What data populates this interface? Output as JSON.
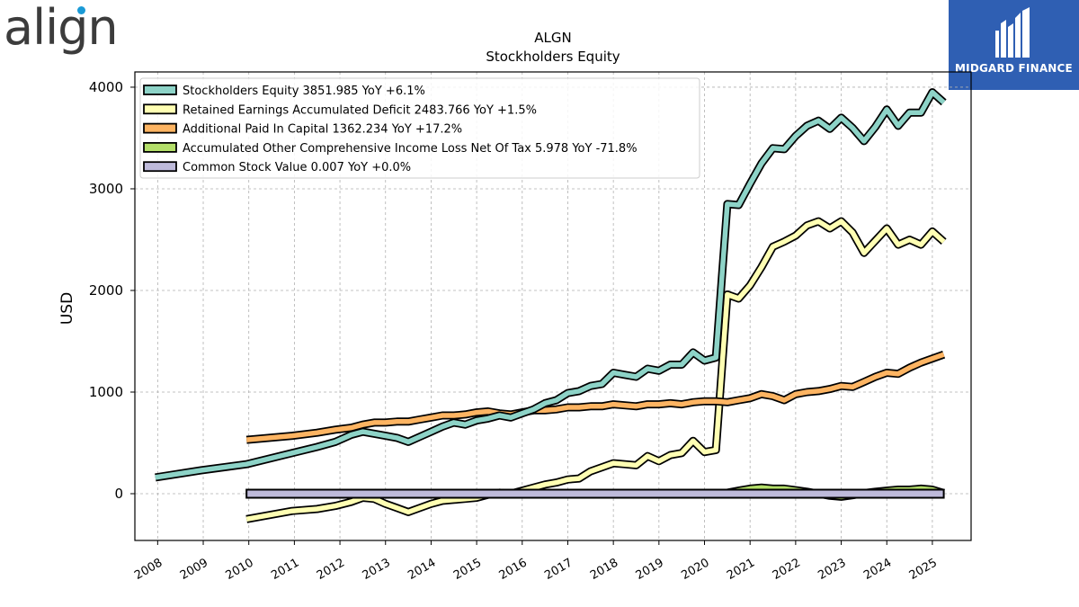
{
  "logo": {
    "text": "align",
    "accent_color": "#1a9ad6"
  },
  "brand": {
    "name": "MIDGARD FINANCE",
    "bg_color": "#2f5fb3",
    "icon": "midgard-m-icon"
  },
  "chart_data": {
    "type": "line",
    "title": "ALGN",
    "subtitle": "Stockholders  Equity",
    "ylabel": "USD",
    "xlabel": "",
    "xlim": [
      2007.5,
      2025.85
    ],
    "ylim": [
      -460,
      4150
    ],
    "x_ticks": [
      "2008",
      "2009",
      "2010",
      "2011",
      "2012",
      "2013",
      "2014",
      "2015",
      "2016",
      "2017",
      "2018",
      "2019",
      "2020",
      "2021",
      "2022",
      "2023",
      "2024",
      "2025"
    ],
    "y_ticks": [
      "0",
      "1000",
      "2000",
      "3000",
      "4000"
    ],
    "y_tick_values": [
      0,
      1000,
      2000,
      3000,
      4000
    ],
    "grid": true,
    "legend_position": "top-left",
    "series": [
      {
        "name": "Stockholders Equity",
        "legend": "Stockholders Equity  3851.985 YoY +6.1%",
        "color": "#8dd3c7",
        "points": [
          [
            2007.95,
            160
          ],
          [
            2008.95,
            230
          ],
          [
            2009.95,
            290
          ],
          [
            2010.95,
            400
          ],
          [
            2011.5,
            460
          ],
          [
            2011.9,
            510
          ],
          [
            2012.25,
            580
          ],
          [
            2012.5,
            610
          ],
          [
            2012.75,
            590
          ],
          [
            2013.0,
            570
          ],
          [
            2013.25,
            550
          ],
          [
            2013.5,
            510
          ],
          [
            2013.75,
            560
          ],
          [
            2014.0,
            610
          ],
          [
            2014.25,
            660
          ],
          [
            2014.5,
            700
          ],
          [
            2014.75,
            680
          ],
          [
            2015.0,
            720
          ],
          [
            2015.25,
            740
          ],
          [
            2015.5,
            770
          ],
          [
            2015.75,
            750
          ],
          [
            2016.0,
            790
          ],
          [
            2016.25,
            830
          ],
          [
            2016.5,
            890
          ],
          [
            2016.75,
            920
          ],
          [
            2017.0,
            990
          ],
          [
            2017.25,
            1010
          ],
          [
            2017.5,
            1060
          ],
          [
            2017.75,
            1080
          ],
          [
            2018.0,
            1190
          ],
          [
            2018.25,
            1170
          ],
          [
            2018.5,
            1150
          ],
          [
            2018.75,
            1230
          ],
          [
            2019.0,
            1210
          ],
          [
            2019.25,
            1270
          ],
          [
            2019.5,
            1270
          ],
          [
            2019.75,
            1390
          ],
          [
            2020.0,
            1310
          ],
          [
            2020.25,
            1340
          ],
          [
            2020.5,
            2850
          ],
          [
            2020.75,
            2840
          ],
          [
            2021.0,
            3050
          ],
          [
            2021.25,
            3250
          ],
          [
            2021.5,
            3400
          ],
          [
            2021.75,
            3390
          ],
          [
            2022.0,
            3520
          ],
          [
            2022.25,
            3620
          ],
          [
            2022.5,
            3670
          ],
          [
            2022.75,
            3590
          ],
          [
            2023.0,
            3700
          ],
          [
            2023.25,
            3600
          ],
          [
            2023.5,
            3470
          ],
          [
            2023.75,
            3610
          ],
          [
            2024.0,
            3780
          ],
          [
            2024.25,
            3620
          ],
          [
            2024.5,
            3750
          ],
          [
            2024.75,
            3750
          ],
          [
            2025.0,
            3950
          ],
          [
            2025.25,
            3850
          ]
        ]
      },
      {
        "name": "Retained Earnings Accumulated Deficit",
        "legend": "Retained Earnings Accumulated Deficit  2483.766 YoY +1.5%",
        "color": "#ffffb3",
        "points": [
          [
            2009.95,
            -250
          ],
          [
            2010.95,
            -170
          ],
          [
            2011.5,
            -150
          ],
          [
            2011.9,
            -120
          ],
          [
            2012.25,
            -80
          ],
          [
            2012.5,
            -40
          ],
          [
            2012.75,
            -50
          ],
          [
            2013.0,
            -100
          ],
          [
            2013.25,
            -140
          ],
          [
            2013.5,
            -180
          ],
          [
            2013.75,
            -140
          ],
          [
            2014.0,
            -100
          ],
          [
            2014.25,
            -70
          ],
          [
            2014.5,
            -60
          ],
          [
            2014.75,
            -50
          ],
          [
            2015.0,
            -40
          ],
          [
            2015.25,
            -10
          ],
          [
            2015.5,
            10
          ],
          [
            2015.75,
            0
          ],
          [
            2016.0,
            30
          ],
          [
            2016.25,
            60
          ],
          [
            2016.5,
            90
          ],
          [
            2016.75,
            110
          ],
          [
            2017.0,
            140
          ],
          [
            2017.25,
            150
          ],
          [
            2017.5,
            220
          ],
          [
            2017.75,
            260
          ],
          [
            2018.0,
            300
          ],
          [
            2018.25,
            290
          ],
          [
            2018.5,
            280
          ],
          [
            2018.75,
            370
          ],
          [
            2019.0,
            320
          ],
          [
            2019.25,
            380
          ],
          [
            2019.5,
            400
          ],
          [
            2019.75,
            520
          ],
          [
            2020.0,
            410
          ],
          [
            2020.25,
            430
          ],
          [
            2020.5,
            1960
          ],
          [
            2020.75,
            1920
          ],
          [
            2021.0,
            2050
          ],
          [
            2021.25,
            2230
          ],
          [
            2021.5,
            2430
          ],
          [
            2021.75,
            2480
          ],
          [
            2022.0,
            2540
          ],
          [
            2022.25,
            2640
          ],
          [
            2022.5,
            2680
          ],
          [
            2022.75,
            2610
          ],
          [
            2023.0,
            2680
          ],
          [
            2023.25,
            2570
          ],
          [
            2023.5,
            2370
          ],
          [
            2023.75,
            2490
          ],
          [
            2024.0,
            2610
          ],
          [
            2024.25,
            2450
          ],
          [
            2024.5,
            2500
          ],
          [
            2024.75,
            2450
          ],
          [
            2025.0,
            2580
          ],
          [
            2025.25,
            2480
          ]
        ]
      },
      {
        "name": "Additional Paid In Capital",
        "legend": "Additional Paid In Capital  1362.234 YoY +17.2%",
        "color": "#fdb462",
        "points": [
          [
            2009.95,
            530
          ],
          [
            2010.95,
            570
          ],
          [
            2011.5,
            600
          ],
          [
            2011.9,
            630
          ],
          [
            2012.25,
            650
          ],
          [
            2012.5,
            680
          ],
          [
            2012.75,
            700
          ],
          [
            2013.0,
            700
          ],
          [
            2013.25,
            710
          ],
          [
            2013.5,
            710
          ],
          [
            2013.75,
            730
          ],
          [
            2014.0,
            750
          ],
          [
            2014.25,
            770
          ],
          [
            2014.5,
            770
          ],
          [
            2014.75,
            780
          ],
          [
            2015.0,
            800
          ],
          [
            2015.25,
            810
          ],
          [
            2015.5,
            790
          ],
          [
            2015.75,
            780
          ],
          [
            2016.0,
            800
          ],
          [
            2016.25,
            820
          ],
          [
            2016.5,
            820
          ],
          [
            2016.75,
            830
          ],
          [
            2017.0,
            850
          ],
          [
            2017.25,
            850
          ],
          [
            2017.5,
            860
          ],
          [
            2017.75,
            860
          ],
          [
            2018.0,
            880
          ],
          [
            2018.25,
            870
          ],
          [
            2018.5,
            860
          ],
          [
            2018.75,
            880
          ],
          [
            2019.0,
            880
          ],
          [
            2019.25,
            890
          ],
          [
            2019.5,
            880
          ],
          [
            2019.75,
            900
          ],
          [
            2020.0,
            910
          ],
          [
            2020.25,
            910
          ],
          [
            2020.5,
            900
          ],
          [
            2020.75,
            920
          ],
          [
            2021.0,
            940
          ],
          [
            2021.25,
            980
          ],
          [
            2021.5,
            960
          ],
          [
            2021.75,
            920
          ],
          [
            2022.0,
            980
          ],
          [
            2022.25,
            1000
          ],
          [
            2022.5,
            1010
          ],
          [
            2022.75,
            1030
          ],
          [
            2023.0,
            1060
          ],
          [
            2023.25,
            1050
          ],
          [
            2023.5,
            1100
          ],
          [
            2023.75,
            1150
          ],
          [
            2024.0,
            1190
          ],
          [
            2024.25,
            1180
          ],
          [
            2024.5,
            1240
          ],
          [
            2024.75,
            1290
          ],
          [
            2025.0,
            1330
          ],
          [
            2025.25,
            1370
          ]
        ]
      },
      {
        "name": "Accumulated Other Comprehensive Income Loss Net Of Tax",
        "legend": "Accumulated Other Comprehensive Income Loss Net Of Tax  5.978 YoY -71.8%",
        "color": "#b3de69",
        "points": [
          [
            2020.0,
            5
          ],
          [
            2020.5,
            10
          ],
          [
            2020.75,
            30
          ],
          [
            2021.0,
            50
          ],
          [
            2021.25,
            60
          ],
          [
            2021.5,
            50
          ],
          [
            2021.75,
            50
          ],
          [
            2022.0,
            35
          ],
          [
            2022.25,
            20
          ],
          [
            2022.5,
            0
          ],
          [
            2022.75,
            -20
          ],
          [
            2023.0,
            -30
          ],
          [
            2023.25,
            -15
          ],
          [
            2023.5,
            5
          ],
          [
            2023.75,
            20
          ],
          [
            2024.0,
            30
          ],
          [
            2024.25,
            40
          ],
          [
            2024.5,
            40
          ],
          [
            2024.75,
            50
          ],
          [
            2025.0,
            40
          ],
          [
            2025.25,
            6
          ]
        ]
      },
      {
        "name": "Common Stock Value",
        "legend": "Common Stock Value  0.007 YoY +0.0%",
        "color": "#bebada",
        "points": [
          [
            2009.95,
            0
          ],
          [
            2025.25,
            0
          ]
        ]
      }
    ]
  }
}
